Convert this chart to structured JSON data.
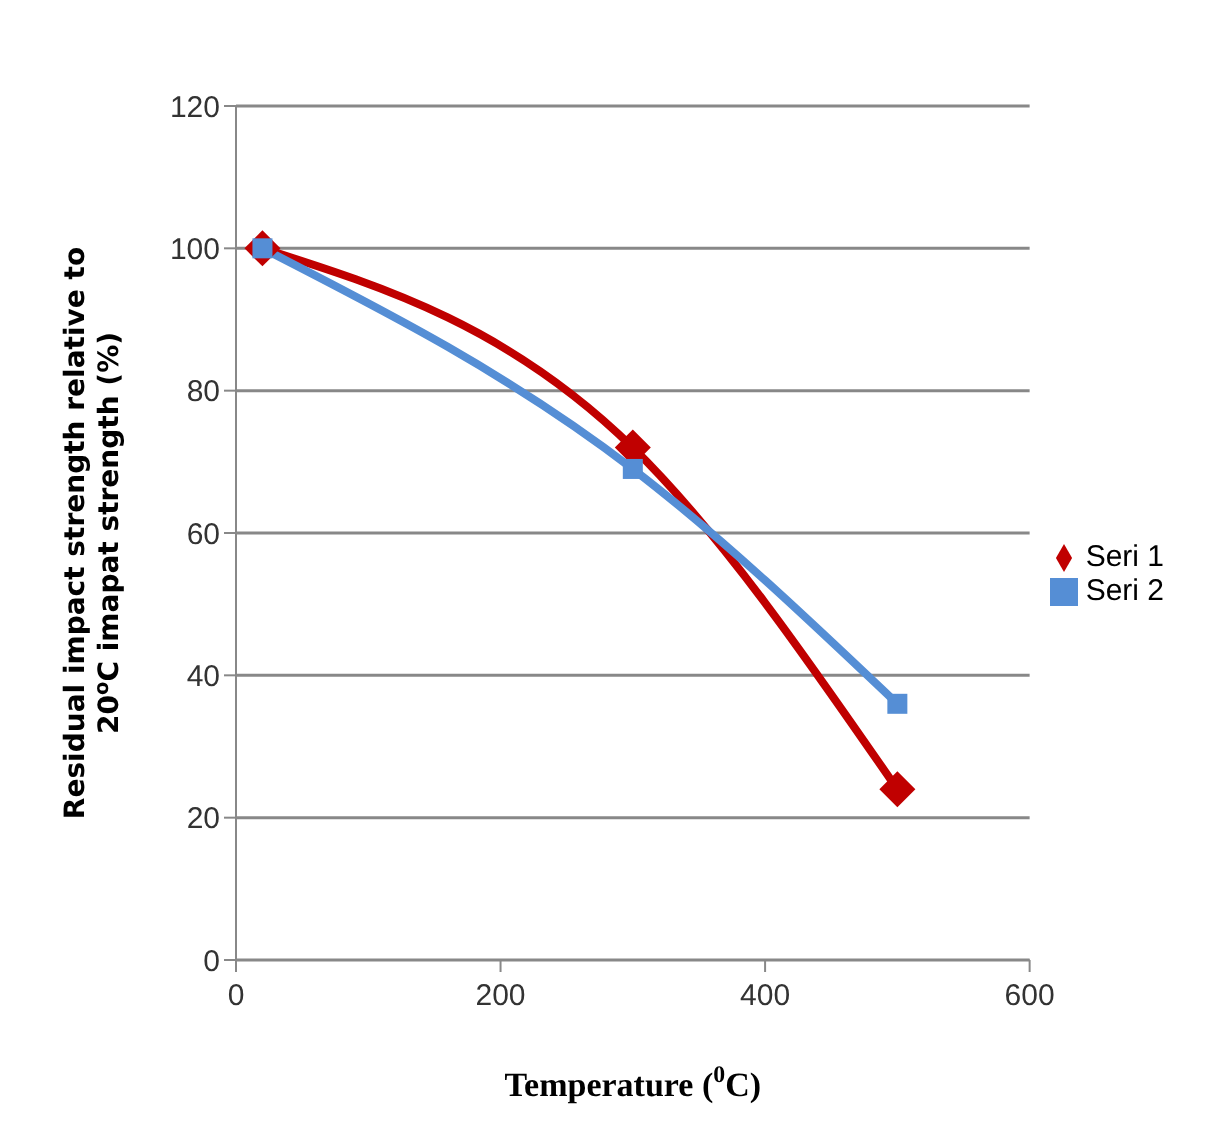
{
  "chart_data": {
    "type": "line",
    "xlabel": "Temperature ($^{0}$C)",
    "ylabel": "Residual impact strength relative to 20$^{o}$C imapat strength (%)",
    "x": [
      20,
      300,
      500
    ],
    "series": [
      {
        "name": "Seri 1",
        "color": "#c00000",
        "values": [
          100,
          72,
          24
        ],
        "marker": "diamond"
      },
      {
        "name": "Seri 2",
        "color": "#558ed5",
        "values": [
          100,
          69,
          36
        ],
        "marker": "square"
      }
    ],
    "xlim": [
      0,
      600
    ],
    "xticks": [
      0,
      200,
      400,
      600
    ],
    "ylim": [
      0,
      120
    ],
    "yticks": [
      0,
      20,
      40,
      60,
      80,
      100,
      120
    ],
    "grid": "y",
    "legend": "right"
  }
}
